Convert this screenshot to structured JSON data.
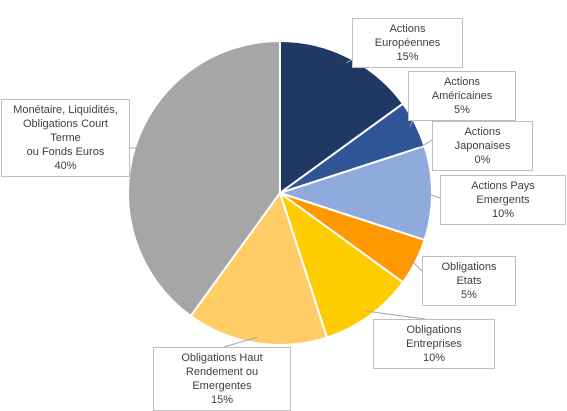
{
  "chart_data": {
    "type": "pie",
    "title": "",
    "slices": [
      {
        "label": "Actions Européennes",
        "value": 15,
        "value_label": "15%",
        "color": "#1f3864"
      },
      {
        "label": "Actions Américaines",
        "value": 5,
        "value_label": "5%",
        "color": "#2f5597"
      },
      {
        "label": "Actions Japonaises",
        "value": 0,
        "value_label": "0%",
        "color": "#4472c4"
      },
      {
        "label": "Actions Pays Emergents",
        "value": 10,
        "value_label": "10%",
        "color": "#8faadc"
      },
      {
        "label": "Obligations Etats",
        "value": 5,
        "value_label": "5%",
        "color": "#ff9900"
      },
      {
        "label": "Obligations Entreprises",
        "value": 10,
        "value_label": "10%",
        "color": "#ffcc00"
      },
      {
        "label": "Obligations Haut\nRendement ou Emergentes",
        "value": 15,
        "value_label": "15%",
        "color": "#ffcc66"
      },
      {
        "label": "Monétaire, Liquidités,\nObligations Court Terme\nou Fonds Euros",
        "value": 40,
        "value_label": "40%",
        "color": "#a6a6a6"
      }
    ],
    "legend": "none",
    "data_labels": "callouts"
  }
}
